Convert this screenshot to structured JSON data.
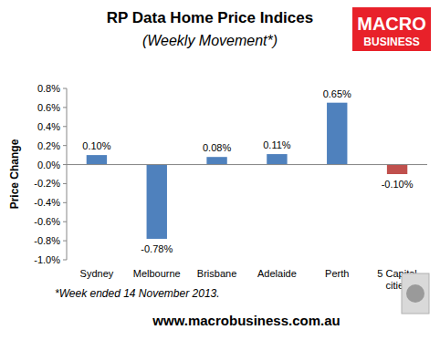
{
  "chart_data": {
    "type": "bar",
    "title": "RP Data Home Price Indices",
    "subtitle": "(Weekly Movement*)",
    "y_label": "Price Change",
    "categories": [
      "Sydney",
      "Melbourne",
      "Brisbane",
      "Adelaide",
      "Perth",
      "5 Capital cities"
    ],
    "values": [
      0.1,
      -0.78,
      0.08,
      0.11,
      0.65,
      -0.1
    ],
    "value_labels": [
      "0.10%",
      "-0.78%",
      "0.08%",
      "0.11%",
      "0.65%",
      "-0.10%"
    ],
    "colors": [
      "#4f81bd",
      "#4f81bd",
      "#4f81bd",
      "#4f81bd",
      "#4f81bd",
      "#c0504d"
    ],
    "ylim": [
      -1.0,
      0.8
    ],
    "yticks": [
      {
        "value": -1.0,
        "label": "-1.0%"
      },
      {
        "value": -0.8,
        "label": "-0.8%"
      },
      {
        "value": -0.6,
        "label": "-0.6%"
      },
      {
        "value": -0.4,
        "label": "-0.4%"
      },
      {
        "value": -0.2,
        "label": "-0.2%"
      },
      {
        "value": 0.0,
        "label": "0.0%"
      },
      {
        "value": 0.2,
        "label": "0.2%"
      },
      {
        "value": 0.4,
        "label": "0.4%"
      },
      {
        "value": 0.6,
        "label": "0.6%"
      },
      {
        "value": 0.8,
        "label": "0.8%"
      }
    ],
    "grid": false,
    "data_labels": true,
    "annotations": [
      "*Week ended 14 November 2013.",
      "www.macrobusiness.com.au",
      "MACRO",
      "BUSINESS"
    ]
  }
}
